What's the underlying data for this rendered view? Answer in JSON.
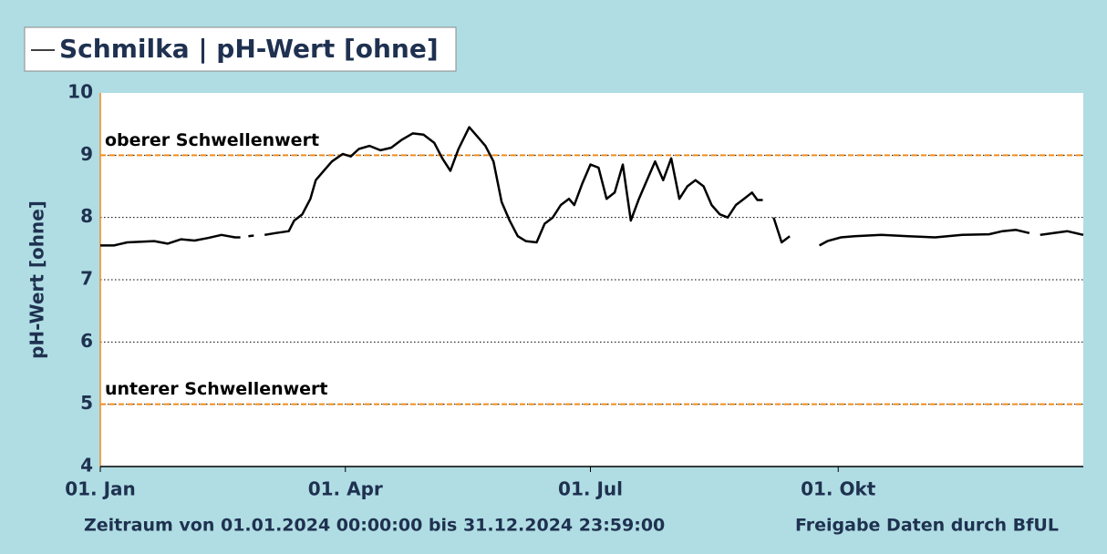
{
  "chart_data": {
    "type": "line",
    "subtitle": "Zeitraum von 01.01.2024 00:00:00 bis 31.12.2024 23:59:00",
    "source": "Freigabe Daten durch BfUL",
    "y_label": "pH-Wert [ohne]",
    "xlim": [
      "2024-01-01",
      "2024-12-31"
    ],
    "xticks": [
      {
        "value": "2024-01-01",
        "label": "01. Jan"
      },
      {
        "value": "2024-04-01",
        "label": "01. Apr"
      },
      {
        "value": "2024-07-01",
        "label": "01. Jul"
      },
      {
        "value": "2024-10-01",
        "label": "01. Okt"
      }
    ],
    "ylim": [
      4,
      10
    ],
    "yticks": [
      4,
      5,
      6,
      7,
      8,
      9,
      10
    ],
    "grid": true,
    "thresholds": [
      {
        "label": "oberer Schwellenwert",
        "value": 9,
        "color": "#f28c1c"
      },
      {
        "label": "unterer Schwellenwert",
        "value": 5,
        "color": "#f28c1c"
      }
    ],
    "x": [
      "2024-01-01",
      "2024-01-06",
      "2024-01-11",
      "2024-01-21",
      "2024-01-26",
      "2024-01-31",
      "2024-02-05",
      "2024-02-10",
      "2024-02-15",
      "2024-02-20",
      "2024-02-22",
      "2024-02-23",
      "2024-02-25",
      "2024-02-27",
      "2024-02-28",
      "2024-03-02",
      "2024-03-06",
      "2024-03-11",
      "2024-03-13",
      "2024-03-16",
      "2024-03-19",
      "2024-03-21",
      "2024-03-24",
      "2024-03-27",
      "2024-03-31",
      "2024-04-03",
      "2024-04-06",
      "2024-04-10",
      "2024-04-14",
      "2024-04-18",
      "2024-04-22",
      "2024-04-26",
      "2024-04-30",
      "2024-05-04",
      "2024-05-07",
      "2024-05-10",
      "2024-05-13",
      "2024-05-17",
      "2024-05-20",
      "2024-05-23",
      "2024-05-26",
      "2024-05-29",
      "2024-06-01",
      "2024-06-04",
      "2024-06-07",
      "2024-06-11",
      "2024-06-14",
      "2024-06-17",
      "2024-06-20",
      "2024-06-23",
      "2024-06-25",
      "2024-06-28",
      "2024-07-01",
      "2024-07-04",
      "2024-07-07",
      "2024-07-10",
      "2024-07-13",
      "2024-07-16",
      "2024-07-19",
      "2024-07-22",
      "2024-07-25",
      "2024-07-28",
      "2024-07-31",
      "2024-08-03",
      "2024-08-06",
      "2024-08-09",
      "2024-08-12",
      "2024-08-15",
      "2024-08-18",
      "2024-08-21",
      "2024-08-24",
      "2024-08-27",
      "2024-08-30",
      "2024-09-01",
      "2024-09-03",
      "2024-09-05",
      "2024-09-07",
      "2024-09-10",
      "2024-09-13",
      "2024-09-16",
      "2024-09-24",
      "2024-09-27",
      "2024-10-02",
      "2024-10-07",
      "2024-10-17",
      "2024-10-27",
      "2024-11-06",
      "2024-11-16",
      "2024-11-26",
      "2024-12-01",
      "2024-12-06",
      "2024-12-11",
      "2024-12-13",
      "2024-12-15",
      "2024-12-20",
      "2024-12-25",
      "2024-12-31"
    ],
    "series": [
      {
        "name": "Schmilka | pH-Wert [ohne]",
        "color": "#000000",
        "values": [
          7.55,
          7.55,
          7.6,
          7.62,
          7.58,
          7.65,
          7.63,
          7.67,
          7.72,
          7.68,
          7.68,
          null,
          7.7,
          7.71,
          null,
          7.72,
          7.75,
          7.78,
          7.95,
          8.05,
          8.3,
          8.6,
          8.75,
          8.9,
          9.02,
          8.98,
          9.1,
          9.15,
          9.08,
          9.12,
          9.25,
          9.35,
          9.33,
          9.2,
          8.95,
          8.75,
          9.1,
          9.45,
          9.3,
          9.15,
          8.9,
          8.25,
          7.95,
          7.7,
          7.62,
          7.6,
          7.9,
          8.0,
          8.2,
          8.3,
          8.2,
          8.55,
          8.85,
          8.8,
          8.3,
          8.4,
          8.85,
          7.95,
          8.3,
          8.6,
          8.9,
          8.6,
          8.95,
          8.3,
          8.5,
          8.6,
          8.5,
          8.2,
          8.05,
          8.0,
          8.2,
          8.3,
          8.4,
          8.28,
          8.28,
          null,
          8.0,
          7.6,
          7.7,
          null,
          7.55,
          7.62,
          7.68,
          7.7,
          7.72,
          7.7,
          7.68,
          7.72,
          7.73,
          7.78,
          7.8,
          7.75,
          null,
          7.72,
          7.75,
          7.78,
          7.72
        ]
      }
    ]
  }
}
